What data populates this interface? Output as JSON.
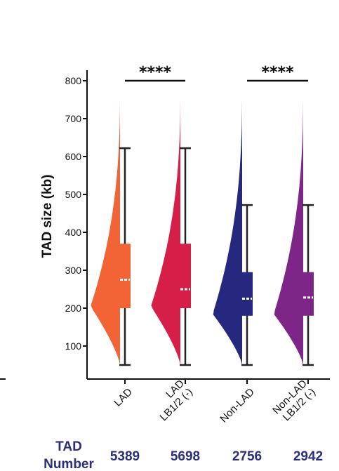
{
  "chart_data": {
    "type": "violin-box",
    "ylabel": "TAD size (kb)",
    "ylim": [
      40,
      820
    ],
    "yticks": [
      100,
      200,
      300,
      400,
      500,
      600,
      700,
      800
    ],
    "categories": [
      {
        "label_lines": [
          "LAD"
        ],
        "color": "#f26336",
        "min": 50,
        "q1": 200,
        "median": 275,
        "q3": 370,
        "max": 622,
        "violin_top": 775,
        "mode": 205,
        "count": "5389"
      },
      {
        "label_lines": [
          "LAD",
          "LB1/2 (-)"
        ],
        "color": "#d61f48",
        "min": 50,
        "q1": 200,
        "median": 250,
        "q3": 370,
        "max": 622,
        "violin_top": 775,
        "mode": 205,
        "count": "5698"
      },
      {
        "label_lines": [
          "Non-LAD"
        ],
        "color": "#25287e",
        "min": 50,
        "q1": 180,
        "median": 225,
        "q3": 295,
        "max": 472,
        "violin_top": 775,
        "mode": 185,
        "count": "2756"
      },
      {
        "label_lines": [
          "Non-LAD",
          "LB1/2 (-)"
        ],
        "color": "#7e2588",
        "min": 50,
        "q1": 180,
        "median": 228,
        "q3": 295,
        "max": 472,
        "violin_top": 775,
        "mode": 185,
        "count": "2942"
      }
    ],
    "significance": [
      {
        "from": 0,
        "to": 1,
        "y": 800,
        "label": "****"
      },
      {
        "from": 2,
        "to": 3,
        "y": 800,
        "label": "****"
      }
    ],
    "count_row_title_lines": [
      "TAD",
      "Number"
    ]
  }
}
